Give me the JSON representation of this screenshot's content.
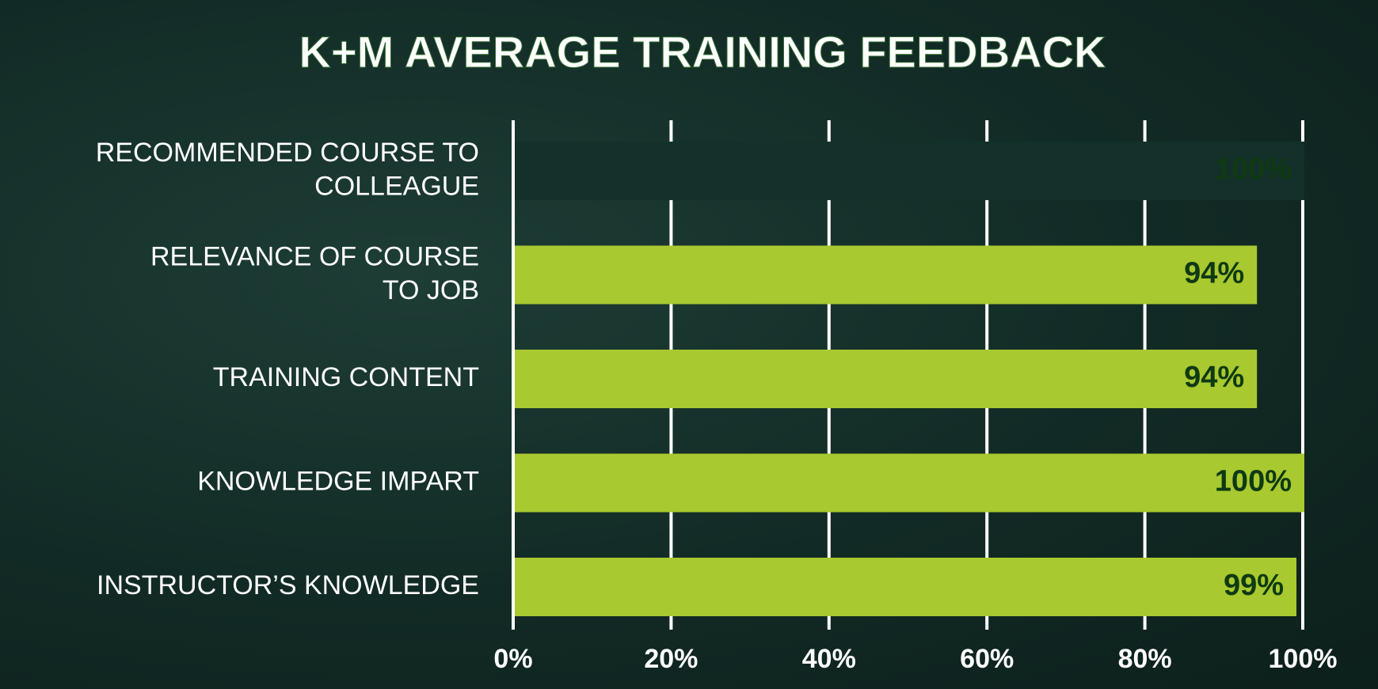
{
  "chart_data": {
    "type": "hbar",
    "title": "K+M AVERAGE TRAINING FEEDBACK",
    "categories": [
      "RECOMMENDED COURSE TO\nCOLLEAGUE",
      "RELEVANCE OF COURSE\nTO JOB",
      "TRAINING CONTENT",
      "KNOWLEDGE IMPART",
      "INSTRUCTOR’S KNOWLEDGE"
    ],
    "values": [
      100,
      94,
      94,
      100,
      99
    ],
    "value_labels": [
      "100%",
      "94%",
      "94%",
      "100%",
      "99%"
    ],
    "colors": [
      "#13302a",
      "#a8c92f",
      "#a8c92f",
      "#a8c92f",
      "#a8c92f"
    ],
    "label_color": "#0f3a12",
    "xlim": [
      0,
      100
    ],
    "xticks": [
      {
        "value": 0,
        "label": "0%"
      },
      {
        "value": 20,
        "label": "20%"
      },
      {
        "value": 40,
        "label": "40%"
      },
      {
        "value": 60,
        "label": "60%"
      },
      {
        "value": 80,
        "label": "80%"
      },
      {
        "value": 100,
        "label": "100%"
      }
    ],
    "grid": true
  }
}
